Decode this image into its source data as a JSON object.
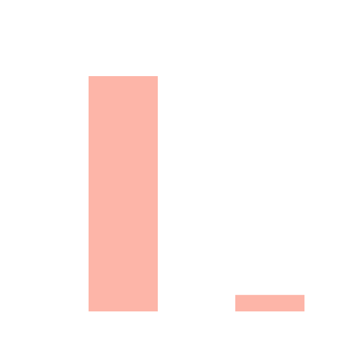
{
  "chart_data": {
    "type": "bar",
    "categories": [
      "",
      ""
    ],
    "values": [
      100,
      7
    ],
    "ylim": [
      0,
      100
    ],
    "grid": false,
    "legend": "none",
    "bar_color": "#fdb5a8",
    "background_color": "#ffffff"
  }
}
